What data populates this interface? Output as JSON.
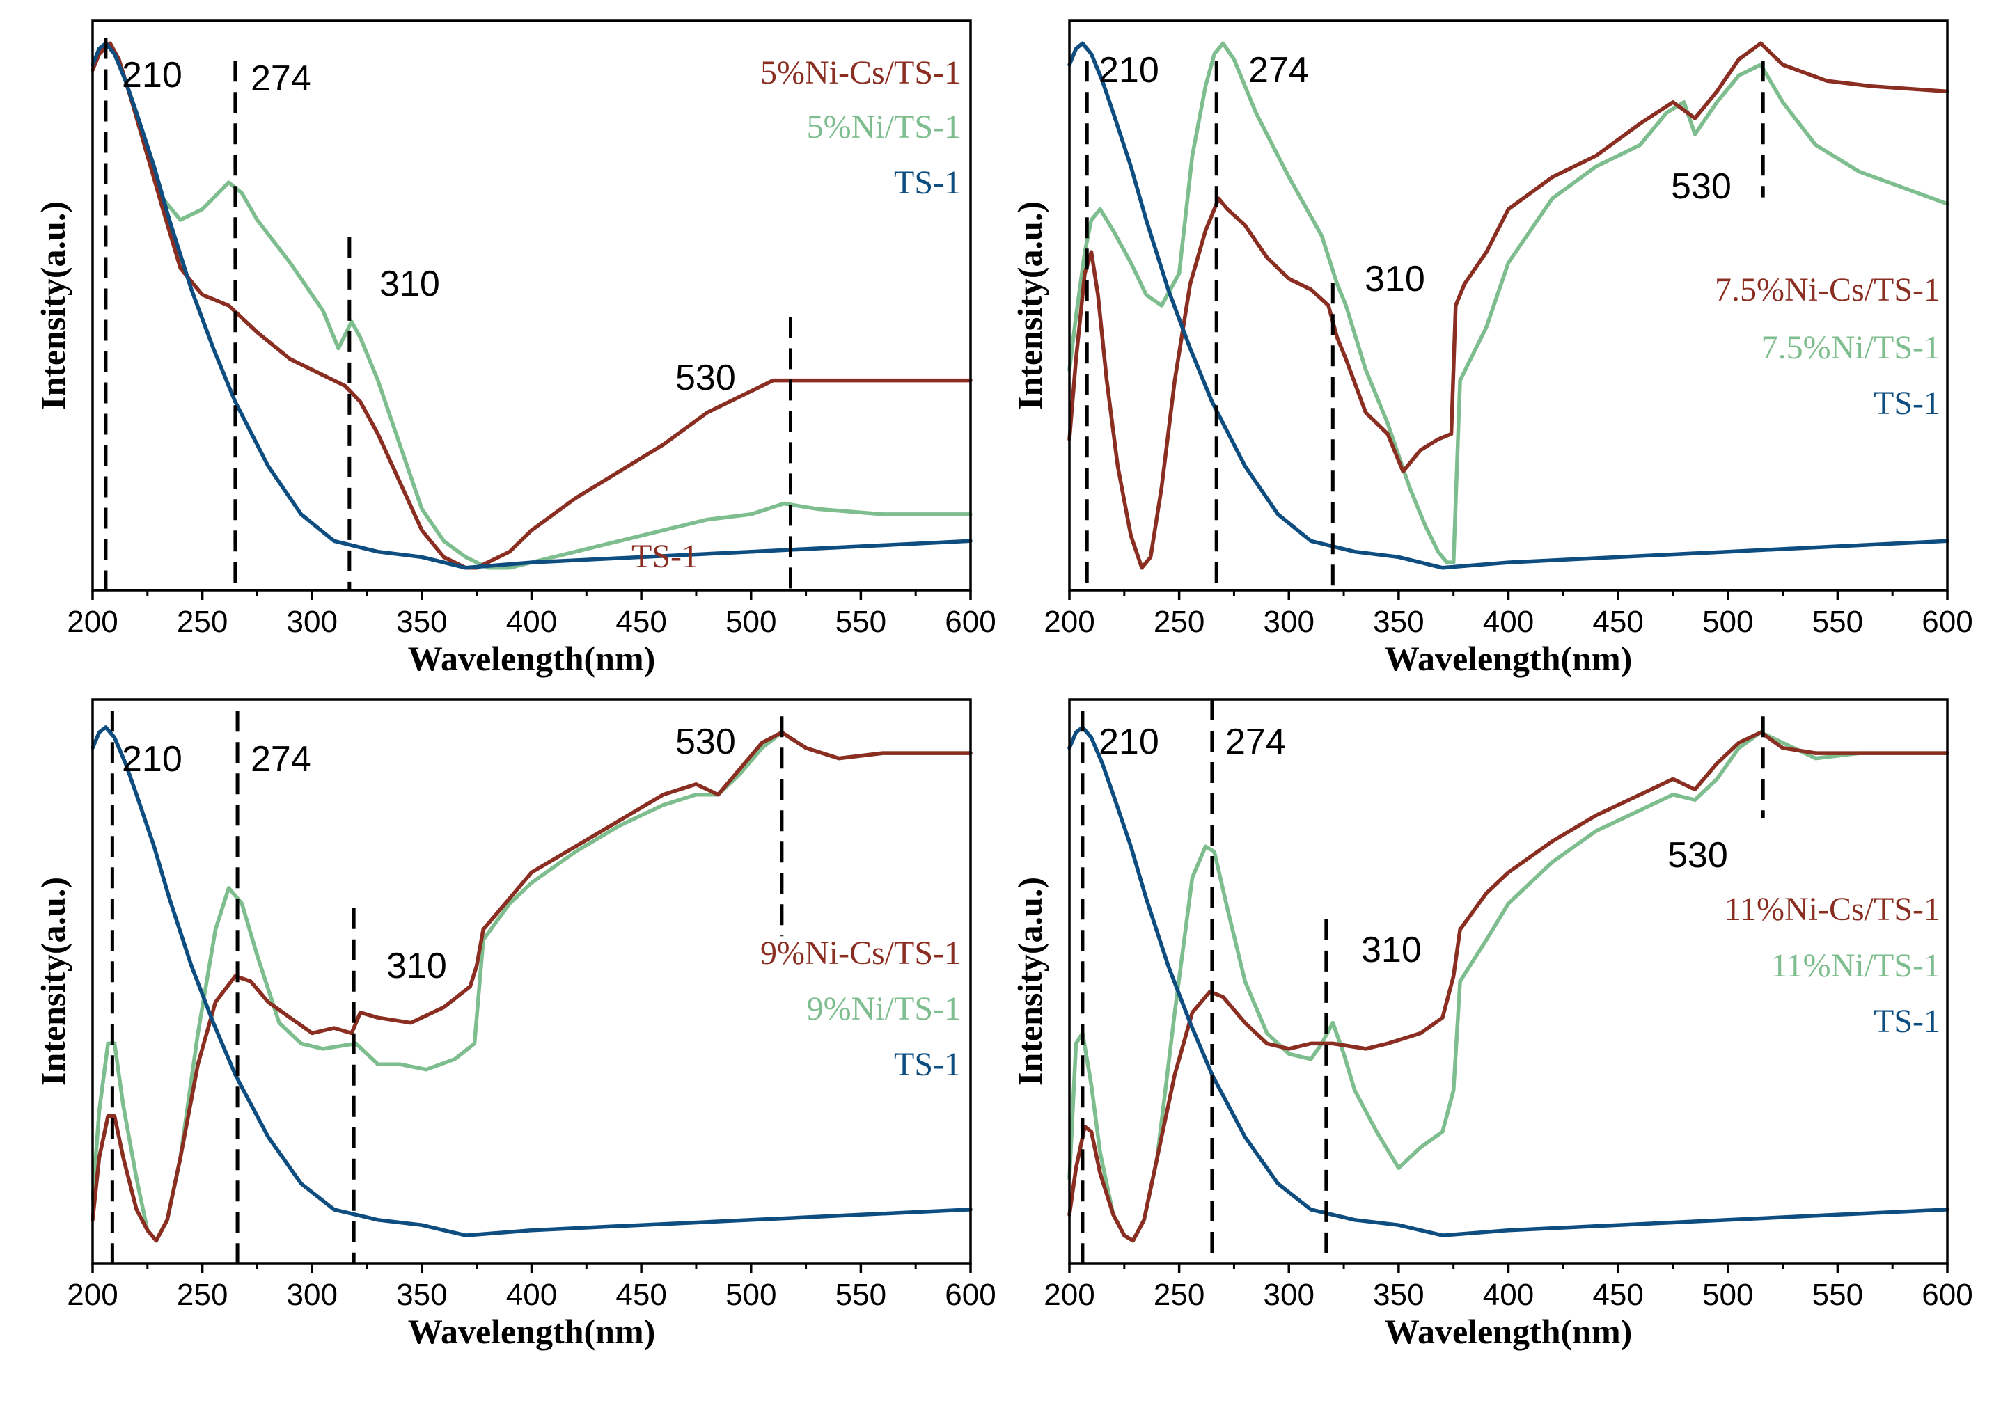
{
  "colors": {
    "ni_cs": "#8B2E22",
    "ni": "#7DBD8E",
    "ts1": "#0E4D80",
    "axis": "#000000"
  },
  "chart_data": [
    {
      "type": "line",
      "xlabel": "Wavelength(nm)",
      "ylabel": "Intensity(a.u.)",
      "xlim": [
        200,
        600
      ],
      "ylim": [
        0,
        100
      ],
      "xticks": [
        "200",
        "250",
        "300",
        "350",
        "400",
        "450",
        "500",
        "550",
        "600"
      ],
      "peak_lines": [
        206,
        265,
        317,
        518
      ],
      "peak_labels": [
        "210",
        "274",
        "310",
        "530"
      ],
      "legend": [
        "5%Ni-Cs/TS-1",
        "5%Ni/TS-1",
        "TS-1"
      ],
      "annotation": "TS-1",
      "series": [
        {
          "name": "5%Ni-Cs/TS-1",
          "x": [
            200,
            203,
            208,
            212,
            218,
            225,
            232,
            240,
            250,
            262,
            275,
            290,
            305,
            315,
            322,
            330,
            340,
            350,
            360,
            370,
            375,
            380,
            390,
            400,
            420,
            440,
            460,
            480,
            500,
            510,
            520,
            540,
            560,
            580,
            600
          ],
          "y": [
            94,
            97,
            99,
            96,
            88,
            78,
            68,
            57,
            52,
            50,
            45,
            40,
            37,
            35,
            32,
            26,
            17,
            8,
            3,
            1,
            1,
            2,
            4,
            8,
            14,
            19,
            24,
            30,
            34,
            36,
            36,
            36,
            36,
            36,
            36
          ]
        },
        {
          "name": "5%Ni/TS-1",
          "x": [
            200,
            203,
            208,
            212,
            218,
            225,
            232,
            240,
            250,
            262,
            268,
            275,
            290,
            305,
            312,
            318,
            322,
            330,
            340,
            350,
            360,
            370,
            380,
            390,
            400,
            420,
            440,
            460,
            480,
            500,
            515,
            530,
            560,
            600
          ],
          "y": [
            95,
            98,
            99,
            96,
            88,
            78,
            70,
            66,
            68,
            73,
            71,
            66,
            58,
            49,
            42,
            47,
            44,
            36,
            24,
            12,
            6,
            3,
            1,
            1,
            2,
            4,
            6,
            8,
            10,
            11,
            13,
            12,
            11,
            11
          ]
        },
        {
          "name": "TS-1",
          "x": [
            200,
            203,
            206,
            210,
            215,
            220,
            228,
            235,
            245,
            255,
            265,
            280,
            295,
            310,
            330,
            350,
            370,
            400,
            450,
            500,
            550,
            600
          ],
          "y": [
            95,
            98,
            99,
            97,
            92,
            86,
            76,
            66,
            53,
            42,
            32,
            20,
            11,
            6,
            4,
            3,
            1,
            2,
            3,
            4,
            5,
            6
          ]
        }
      ]
    },
    {
      "type": "line",
      "xlabel": "Wavelength(nm)",
      "ylabel": "Intensity(a.u.)",
      "xlim": [
        200,
        600
      ],
      "ylim": [
        0,
        100
      ],
      "xticks": [
        "200",
        "250",
        "300",
        "350",
        "400",
        "450",
        "500",
        "550",
        "600"
      ],
      "peak_lines": [
        208,
        267,
        320,
        516
      ],
      "peak_labels": [
        "210",
        "274",
        "310",
        "530"
      ],
      "legend": [
        "7.5%Ni-Cs/TS-1",
        "7.5%Ni/TS-1",
        "TS-1"
      ],
      "series": [
        {
          "name": "7.5%Ni-Cs/TS-1",
          "x": [
            200,
            203,
            207,
            210,
            213,
            217,
            222,
            228,
            233,
            237,
            242,
            248,
            255,
            262,
            268,
            272,
            280,
            290,
            300,
            310,
            318,
            322,
            326,
            335,
            345,
            352,
            360,
            368,
            374,
            376,
            380,
            390,
            400,
            420,
            440,
            460,
            475,
            485,
            495,
            505,
            515,
            525,
            545,
            565,
            600
          ],
          "y": [
            25,
            40,
            56,
            60,
            52,
            36,
            20,
            7,
            1,
            3,
            16,
            36,
            54,
            64,
            70,
            68,
            65,
            59,
            55,
            53,
            50,
            44,
            40,
            30,
            26,
            19,
            23,
            25,
            26,
            50,
            54,
            60,
            68,
            74,
            78,
            84,
            88,
            85,
            90,
            96,
            99,
            95,
            92,
            91,
            90
          ]
        },
        {
          "name": "7.5%Ni/TS-1",
          "x": [
            200,
            203,
            207,
            210,
            214,
            220,
            228,
            235,
            242,
            250,
            256,
            262,
            266,
            270,
            275,
            285,
            300,
            315,
            322,
            326,
            335,
            345,
            355,
            362,
            368,
            372,
            375,
            378,
            390,
            400,
            420,
            440,
            460,
            472,
            480,
            485,
            495,
            505,
            515,
            525,
            540,
            560,
            580,
            600
          ],
          "y": [
            38,
            48,
            60,
            66,
            68,
            64,
            58,
            52,
            50,
            56,
            78,
            91,
            97,
            99,
            96,
            86,
            74,
            63,
            54,
            50,
            38,
            28,
            16,
            9,
            4,
            2,
            2,
            36,
            46,
            58,
            70,
            76,
            80,
            86,
            88,
            82,
            88,
            93,
            95,
            88,
            80,
            75,
            72,
            69
          ]
        },
        {
          "name": "TS-1",
          "x": [
            200,
            203,
            206,
            210,
            215,
            220,
            228,
            235,
            245,
            255,
            265,
            280,
            295,
            310,
            330,
            350,
            370,
            400,
            450,
            500,
            550,
            600
          ],
          "y": [
            95,
            98,
            99,
            97,
            92,
            86,
            76,
            66,
            53,
            42,
            32,
            20,
            11,
            6,
            4,
            3,
            1,
            2,
            3,
            4,
            5,
            6
          ]
        }
      ]
    },
    {
      "type": "line",
      "xlabel": "Wavelength(nm)",
      "ylabel": "Intensity(a.u.)",
      "xlim": [
        200,
        600
      ],
      "ylim": [
        0,
        100
      ],
      "xticks": [
        "200",
        "250",
        "300",
        "350",
        "400",
        "450",
        "500",
        "550",
        "600"
      ],
      "peak_lines": [
        209,
        266,
        319,
        514
      ],
      "peak_labels": [
        "210",
        "274",
        "310",
        "530"
      ],
      "legend": [
        "9%Ni-Cs/TS-1",
        "9%Ni/TS-1",
        "TS-1"
      ],
      "series": [
        {
          "name": "9%Ni-Cs/TS-1",
          "x": [
            200,
            203,
            207,
            210,
            214,
            220,
            225,
            229,
            234,
            240,
            248,
            256,
            265,
            272,
            280,
            290,
            300,
            310,
            318,
            322,
            330,
            345,
            360,
            372,
            375,
            378,
            390,
            400,
            420,
            440,
            460,
            475,
            485,
            495,
            505,
            514,
            525,
            540,
            560,
            600
          ],
          "y": [
            4,
            16,
            24,
            24,
            16,
            6,
            2,
            0,
            4,
            16,
            34,
            46,
            51,
            50,
            46,
            43,
            40,
            41,
            40,
            44,
            43,
            42,
            45,
            49,
            53,
            60,
            66,
            71,
            76,
            81,
            86,
            88,
            86,
            91,
            96,
            98,
            95,
            93,
            94,
            94
          ]
        },
        {
          "name": "9%Ni/TS-1",
          "x": [
            200,
            203,
            207,
            210,
            214,
            220,
            225,
            229,
            234,
            240,
            248,
            256,
            262,
            268,
            275,
            285,
            295,
            305,
            320,
            330,
            340,
            352,
            365,
            374,
            378,
            390,
            400,
            420,
            440,
            460,
            475,
            485,
            495,
            505,
            514,
            525,
            540,
            560,
            600
          ],
          "y": [
            8,
            25,
            38,
            38,
            26,
            12,
            2,
            0,
            4,
            16,
            40,
            60,
            68,
            65,
            55,
            42,
            38,
            37,
            38,
            34,
            34,
            33,
            35,
            38,
            58,
            65,
            69,
            75,
            80,
            84,
            86,
            86,
            90,
            95,
            98,
            95,
            93,
            94,
            94
          ]
        },
        {
          "name": "TS-1",
          "x": [
            200,
            203,
            206,
            210,
            215,
            220,
            228,
            235,
            245,
            255,
            265,
            280,
            295,
            310,
            330,
            350,
            370,
            400,
            450,
            500,
            550,
            600
          ],
          "y": [
            95,
            98,
            99,
            97,
            92,
            86,
            76,
            66,
            53,
            42,
            32,
            20,
            11,
            6,
            4,
            3,
            1,
            2,
            3,
            4,
            5,
            6
          ]
        }
      ]
    },
    {
      "type": "line",
      "xlabel": "Wavelength(nm)",
      "ylabel": "Intensity(a.u.)",
      "xlim": [
        200,
        600
      ],
      "ylim": [
        0,
        100
      ],
      "xticks": [
        "200",
        "250",
        "300",
        "350",
        "400",
        "450",
        "500",
        "550",
        "600"
      ],
      "peak_lines": [
        206,
        265,
        317,
        516
      ],
      "peak_labels": [
        "210",
        "274",
        "310",
        "530"
      ],
      "legend": [
        "11%Ni-Cs/TS-1",
        "11%Ni/TS-1",
        "TS-1"
      ],
      "series": [
        {
          "name": "11%Ni-Cs/TS-1",
          "x": [
            200,
            203,
            207,
            210,
            214,
            220,
            225,
            229,
            234,
            240,
            248,
            256,
            264,
            270,
            280,
            290,
            300,
            310,
            320,
            335,
            345,
            360,
            370,
            375,
            378,
            390,
            400,
            420,
            440,
            460,
            475,
            485,
            495,
            505,
            515,
            525,
            540,
            560,
            600
          ],
          "y": [
            5,
            14,
            22,
            21,
            13,
            5,
            1,
            0,
            4,
            16,
            32,
            44,
            48,
            47,
            42,
            38,
            37,
            38,
            38,
            37,
            38,
            40,
            43,
            51,
            60,
            67,
            71,
            77,
            82,
            86,
            89,
            87,
            92,
            96,
            98,
            95,
            94,
            94,
            94
          ]
        },
        {
          "name": "11%Ni/TS-1",
          "x": [
            200,
            203,
            206,
            210,
            214,
            220,
            225,
            229,
            234,
            240,
            248,
            256,
            262,
            266,
            272,
            280,
            290,
            300,
            310,
            315,
            320,
            325,
            330,
            340,
            350,
            360,
            370,
            375,
            378,
            390,
            400,
            420,
            440,
            460,
            475,
            485,
            495,
            505,
            515,
            525,
            540,
            560,
            600
          ],
          "y": [
            12,
            38,
            40,
            30,
            17,
            5,
            1,
            0,
            4,
            16,
            44,
            70,
            76,
            75,
            64,
            50,
            40,
            36,
            35,
            38,
            42,
            36,
            29,
            21,
            14,
            18,
            21,
            29,
            50,
            58,
            65,
            73,
            79,
            83,
            86,
            85,
            89,
            95,
            98,
            96,
            93,
            94,
            94
          ]
        },
        {
          "name": "TS-1",
          "x": [
            200,
            203,
            206,
            210,
            215,
            220,
            228,
            235,
            245,
            255,
            265,
            280,
            295,
            310,
            330,
            350,
            370,
            400,
            450,
            500,
            550,
            600
          ],
          "y": [
            95,
            98,
            99,
            97,
            92,
            86,
            76,
            66,
            53,
            42,
            32,
            20,
            11,
            6,
            4,
            3,
            1,
            2,
            3,
            4,
            5,
            6
          ]
        }
      ]
    }
  ]
}
